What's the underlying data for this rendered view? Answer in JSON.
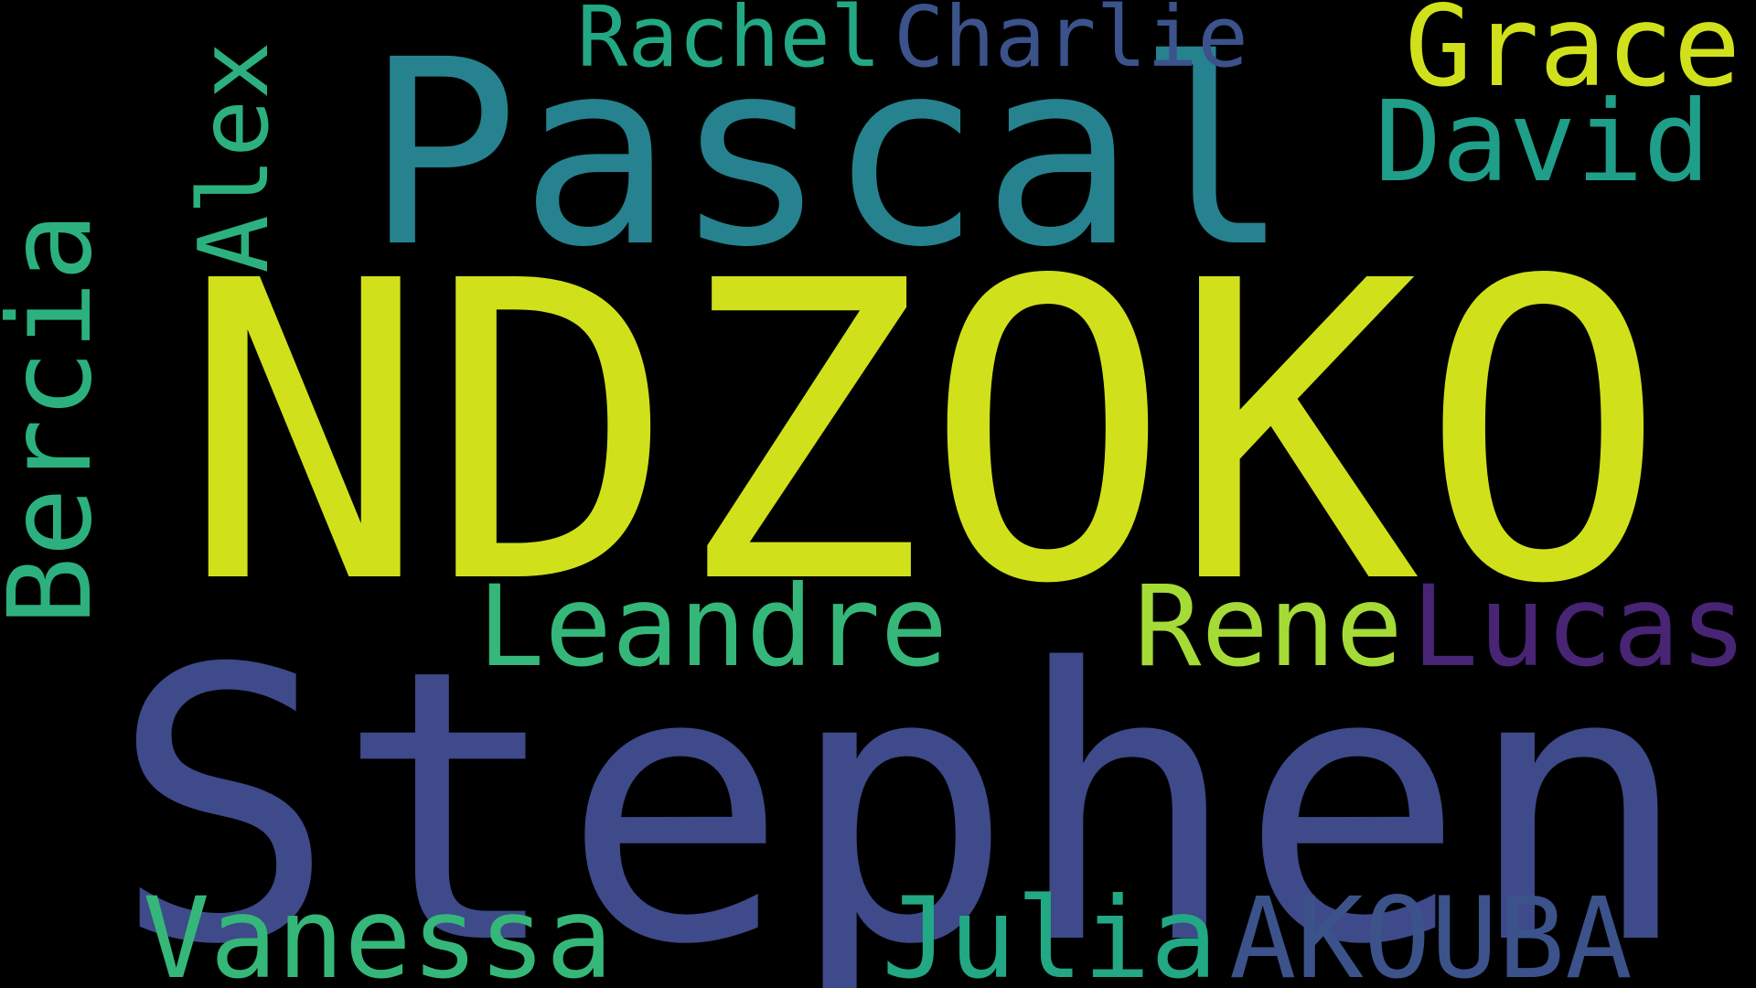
{
  "words": [
    {
      "text": "NDZOKO",
      "color": "#d0e11c"
    },
    {
      "text": "Stephen",
      "color": "#3e4a89"
    },
    {
      "text": "Pascal",
      "color": "#26828e"
    },
    {
      "text": "Bercia",
      "color": "#2cb17e"
    },
    {
      "text": "Alex",
      "color": "#2cb17e"
    },
    {
      "text": "Rachel",
      "color": "#22a884"
    },
    {
      "text": "Charlie",
      "color": "#3b528b"
    },
    {
      "text": "Grace",
      "color": "#d0e11c"
    },
    {
      "text": "David",
      "color": "#1f9e89"
    },
    {
      "text": "Leandre",
      "color": "#35b779"
    },
    {
      "text": "Rene",
      "color": "#a5db36"
    },
    {
      "text": "Lucas",
      "color": "#482475"
    },
    {
      "text": "Vanessa",
      "color": "#35b779"
    },
    {
      "text": "Julia",
      "color": "#22a884"
    },
    {
      "text": "AKOUBA",
      "color": "#3b528b"
    }
  ]
}
